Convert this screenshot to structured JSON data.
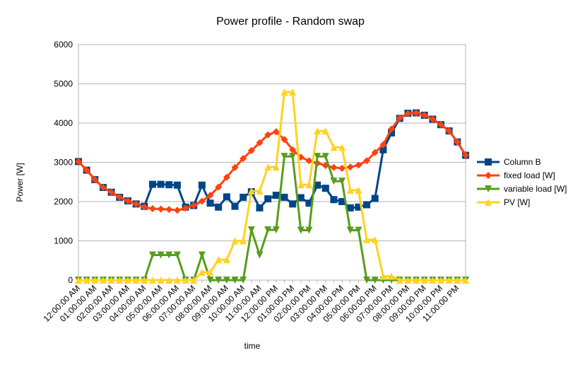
{
  "chart_data": {
    "type": "line",
    "title": "Power profile - Random swap",
    "xlabel": "time",
    "ylabel": "Power [W]",
    "ylim": [
      0,
      6000
    ],
    "yticks": [
      0,
      1000,
      2000,
      3000,
      4000,
      5000,
      6000
    ],
    "grid": "horizontal",
    "legend": "right",
    "x_tick_labels": [
      "12:00:00 AM",
      "01:00:00 AM",
      "02:00:00 AM",
      "03:00:00 AM",
      "04:00:00 AM",
      "05:00:00 AM",
      "06:00:00 AM",
      "07:00:00 AM",
      "08:00:00 AM",
      "09:00:00 AM",
      "10:00:00 AM",
      "11:00:00 AM",
      "12:00:00 PM",
      "01:00:00 PM",
      "02:00:00 PM",
      "03:00:00 PM",
      "04:00:00 PM",
      "05:00:00 PM",
      "06:00:00 PM",
      "07:00:00 PM",
      "08:00:00 PM",
      "09:00:00 PM",
      "10:00:00 PM",
      "11:00:00 PM"
    ],
    "x_hours": [
      0,
      0.5,
      1,
      1.5,
      2,
      2.5,
      3,
      3.5,
      4,
      4.5,
      5,
      5.5,
      6,
      6.5,
      7,
      7.5,
      8,
      8.5,
      9,
      9.5,
      10,
      10.5,
      11,
      11.5,
      12,
      12.5,
      13,
      13.5,
      14,
      14.5,
      15,
      15.5,
      16,
      16.5,
      17,
      17.5,
      18,
      18.5,
      19,
      19.5,
      20,
      20.5,
      21,
      21.5,
      22,
      22.5,
      23,
      23.5
    ],
    "series": [
      {
        "name": "Column B",
        "color": "#004586",
        "marker": "square",
        "values": [
          3020,
          2800,
          2560,
          2360,
          2240,
          2110,
          2020,
          1940,
          1880,
          2440,
          2440,
          2430,
          2420,
          1860,
          1900,
          2420,
          1960,
          1860,
          2120,
          1880,
          2110,
          2250,
          1840,
          2070,
          2160,
          2110,
          1940,
          2100,
          1960,
          2420,
          2340,
          2050,
          2000,
          1840,
          1860,
          1920,
          2080,
          3320,
          3750,
          4120,
          4250,
          4260,
          4200,
          4100,
          3960,
          3800,
          3520,
          3180
        ]
      },
      {
        "name": "fixed load [W]",
        "color": "#ff420e",
        "marker": "diamond",
        "values": [
          3020,
          2800,
          2560,
          2360,
          2240,
          2110,
          2020,
          1940,
          1860,
          1820,
          1810,
          1800,
          1780,
          1830,
          1900,
          2010,
          2160,
          2370,
          2620,
          2870,
          3100,
          3300,
          3500,
          3700,
          3780,
          3580,
          3320,
          3130,
          3040,
          2980,
          2920,
          2870,
          2850,
          2880,
          2930,
          3040,
          3250,
          3450,
          3850,
          4130,
          4240,
          4260,
          4200,
          4100,
          3960,
          3800,
          3520,
          3180
        ]
      },
      {
        "name": "variable load [W]",
        "color": "#579d1c",
        "marker": "triangle-down",
        "values": [
          0,
          0,
          0,
          0,
          0,
          0,
          0,
          0,
          0,
          640,
          640,
          640,
          640,
          0,
          0,
          640,
          0,
          0,
          0,
          0,
          0,
          1280,
          640,
          1280,
          1280,
          3150,
          3150,
          1270,
          1270,
          3150,
          3150,
          2520,
          2520,
          1270,
          1270,
          0,
          0,
          0,
          0,
          0,
          0,
          0,
          0,
          0,
          0,
          0,
          0,
          0
        ]
      },
      {
        "name": "PV [W]",
        "color": "#ffd320",
        "marker": "triangle-up",
        "values": [
          0,
          0,
          0,
          0,
          0,
          0,
          0,
          0,
          0,
          0,
          0,
          0,
          0,
          0,
          0,
          200,
          200,
          520,
          520,
          1000,
          1000,
          2270,
          2270,
          2880,
          2880,
          4790,
          4790,
          2430,
          2430,
          3800,
          3800,
          3380,
          3380,
          2290,
          2290,
          1030,
          1030,
          100,
          100,
          0,
          0,
          0,
          0,
          0,
          0,
          0,
          0,
          0
        ]
      }
    ]
  }
}
